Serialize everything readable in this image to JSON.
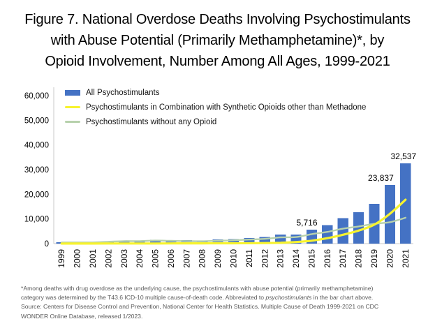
{
  "title": {
    "lines": [
      "Figure 7. National Overdose Deaths Involving Psychostimulants",
      "with Abuse Potential (Primarily Methamphetamine)*, by",
      "Opioid Involvement, Number Among All Ages, 1999-2021"
    ]
  },
  "chart_data": {
    "type": "bar",
    "subtype": "combo-bar-line",
    "categories": [
      "1999",
      "2000",
      "2001",
      "2002",
      "2003",
      "2004",
      "2005",
      "2006",
      "2007",
      "2008",
      "2009",
      "2010",
      "2011",
      "2012",
      "2013",
      "2014",
      "2015",
      "2016",
      "2017",
      "2018",
      "2019",
      "2020",
      "2021"
    ],
    "series": [
      {
        "name": "All Psychostimulants",
        "type": "bar",
        "color": "#4472C4",
        "values": [
          547,
          578,
          563,
          941,
          1302,
          1305,
          1608,
          1462,
          1378,
          1302,
          1632,
          1854,
          2266,
          2635,
          3627,
          3728,
          5716,
          7542,
          10333,
          12676,
          16167,
          23837,
          32537
        ]
      },
      {
        "name": "Psychostimulants in Combination with Synthetic Opioids other than Methadone",
        "type": "line",
        "color": "#F7F32E",
        "values": [
          21,
          25,
          25,
          45,
          55,
          60,
          70,
          90,
          105,
          120,
          135,
          145,
          175,
          220,
          350,
          650,
          1200,
          2200,
          3600,
          5300,
          7700,
          12100,
          17800
        ]
      },
      {
        "name": "Psychostimulants without any Opioid",
        "type": "line",
        "color": "#B7D1AC",
        "values": [
          460,
          490,
          470,
          760,
          1010,
          1010,
          1240,
          1120,
          1030,
          960,
          1190,
          1360,
          1650,
          1920,
          2550,
          2650,
          3850,
          4750,
          6050,
          6950,
          8050,
          8700,
          10500
        ]
      }
    ],
    "data_labels": [
      {
        "category": "2015",
        "text": "5,716",
        "dx": -7
      },
      {
        "category": "2020",
        "text": "23,837",
        "dx": -13
      },
      {
        "category": "2021",
        "text": "32,537",
        "dx": -3
      }
    ],
    "ylim": [
      0,
      60000
    ],
    "ytick_interval": 10000,
    "ytick_labels": [
      "0",
      "10,000",
      "20,000",
      "30,000",
      "40,000",
      "50,000",
      "60,000"
    ],
    "xlabel": "",
    "ylabel": "",
    "grid": false,
    "legend_position": "top-left-inside",
    "x_tick_rotation": -90,
    "axis_color": "#C9C9C9"
  },
  "footnote": {
    "line1": "*Among deaths with drug overdose as the underlying cause, the psychostimulants with abuse potential (primarily methamphetamine)",
    "line2_pre": "category was determined by the T43.6 ICD-10 multiple cause-of-death code. Abbreviated to ",
    "line2_italic": "psychostimulants",
    "line2_post": " in the bar chart above.",
    "line3": "Source: Centers for Disease Control and Prevention, National Center for Health Statistics. Multiple Cause of Death 1999-2021 on CDC",
    "line4": "WONDER Online Database, released 1/2023."
  }
}
